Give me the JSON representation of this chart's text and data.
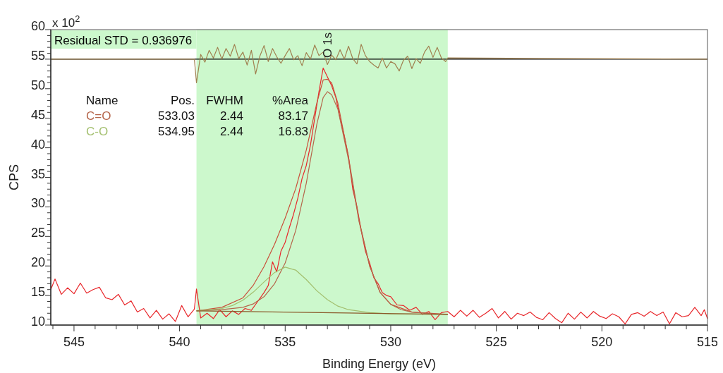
{
  "chart_data": {
    "type": "line",
    "xlabel": "Binding Energy (eV)",
    "ylabel": "CPS",
    "xlim": [
      546.1,
      515
    ],
    "ylim": [
      10,
      60
    ],
    "xticks": [
      {
        "value": 546,
        "label": null
      },
      545,
      {
        "value": 544,
        "label": null
      },
      {
        "value": 543,
        "label": null
      },
      {
        "value": 542,
        "label": null
      },
      {
        "value": 541,
        "label": null
      },
      540,
      {
        "value": 539,
        "label": null
      },
      {
        "value": 538,
        "label": null
      },
      {
        "value": 537,
        "label": null
      },
      {
        "value": 536,
        "label": null
      },
      535,
      {
        "value": 534,
        "label": null
      },
      {
        "value": 533,
        "label": null
      },
      {
        "value": 532,
        "label": null
      },
      {
        "value": 531,
        "label": null
      },
      530,
      {
        "value": 529,
        "label": null
      },
      {
        "value": 528,
        "label": null
      },
      {
        "value": 527,
        "label": null
      },
      {
        "value": 526,
        "label": null
      },
      525,
      {
        "value": 524,
        "label": null
      },
      {
        "value": 523,
        "label": null
      },
      {
        "value": 522,
        "label": null
      },
      {
        "value": 521,
        "label": null
      },
      520,
      {
        "value": 519,
        "label": null
      },
      {
        "value": 518,
        "label": null
      },
      {
        "value": 517,
        "label": null
      },
      {
        "value": 516,
        "label": null
      },
      515
    ],
    "yticks": [
      10,
      {
        "value": 11,
        "label": null
      },
      {
        "value": 12,
        "label": null
      },
      {
        "value": 13,
        "label": null
      },
      {
        "value": 14,
        "label": null
      },
      15,
      {
        "value": 16,
        "label": null
      },
      {
        "value": 17,
        "label": null
      },
      {
        "value": 18,
        "label": null
      },
      {
        "value": 19,
        "label": null
      },
      20,
      {
        "value": 21,
        "label": null
      },
      {
        "value": 22,
        "label": null
      },
      {
        "value": 23,
        "label": null
      },
      {
        "value": 24,
        "label": null
      },
      25,
      {
        "value": 26,
        "label": null
      },
      {
        "value": 27,
        "label": null
      },
      {
        "value": 28,
        "label": null
      },
      {
        "value": 29,
        "label": null
      },
      30,
      {
        "value": 31,
        "label": null
      },
      {
        "value": 32,
        "label": null
      },
      {
        "value": 33,
        "label": null
      },
      {
        "value": 34,
        "label": null
      },
      35,
      {
        "value": 36,
        "label": null
      },
      {
        "value": 37,
        "label": null
      },
      {
        "value": 38,
        "label": null
      },
      {
        "value": 39,
        "label": null
      },
      40,
      {
        "value": 41,
        "label": null
      },
      {
        "value": 42,
        "label": null
      },
      {
        "value": 43,
        "label": null
      },
      {
        "value": 44,
        "label": null
      },
      45,
      {
        "value": 46,
        "label": null
      },
      {
        "value": 47,
        "label": null
      },
      {
        "value": 48,
        "label": null
      },
      {
        "value": 49,
        "label": null
      },
      50,
      {
        "value": 51,
        "label": null
      },
      {
        "value": 52,
        "label": null
      },
      {
        "value": 53,
        "label": null
      },
      {
        "value": 54,
        "label": null
      },
      55,
      {
        "value": 56,
        "label": null
      },
      {
        "value": 57,
        "label": null
      },
      {
        "value": 58,
        "label": null
      },
      {
        "value": 59,
        "label": null
      },
      60
    ],
    "grid": false,
    "marker": "none",
    "line_style": "solid",
    "bands": [
      {
        "axis": "x",
        "from": 539.2,
        "to": 527.3,
        "color": "#ccf8cc"
      }
    ],
    "ref_lines": [
      {
        "axis": "y",
        "value": 55,
        "color": "#000000"
      }
    ],
    "annotations": [
      "x 10$^{2}$",
      "Residual STD = 0.936976",
      {
        "text": "O 1s",
        "x": 533,
        "y": 55
      },
      "Name",
      "Pos.",
      "FWHM",
      "%Area",
      "533.03",
      "2.44",
      "83.17",
      "534.95",
      "2.44",
      "16.83"
    ],
    "series": [
      {
        "color": "#e8262a",
        "x": [
          546.1,
          545.9,
          545.6,
          545.3,
          545.0,
          544.7,
          544.4,
          544.1,
          543.8,
          543.5,
          543.2,
          542.9,
          542.6,
          542.3,
          542.0,
          541.7,
          541.4,
          541.1,
          540.8,
          540.5,
          540.2,
          539.9,
          539.6,
          539.3,
          539.2,
          539.0,
          538.7,
          538.4,
          538.1,
          537.8,
          537.5,
          537.2,
          536.9,
          536.6,
          536.3,
          536.0,
          535.8,
          535.6,
          535.4,
          535.2,
          535.0,
          534.8,
          534.6,
          534.4,
          534.2,
          534.0,
          533.8,
          533.6,
          533.4,
          533.2,
          533.0,
          532.8,
          532.6,
          532.4,
          532.2,
          532.0,
          531.8,
          531.6,
          531.4,
          531.2,
          531.0,
          530.8,
          530.6,
          530.4,
          530.2,
          530.0,
          529.7,
          529.4,
          529.1,
          528.8,
          528.5,
          528.2,
          527.9,
          527.6,
          527.3,
          527.0,
          526.7,
          526.4,
          526.1,
          525.8,
          525.5,
          525.2,
          524.9,
          524.6,
          524.3,
          524.0,
          523.7,
          523.4,
          523.1,
          522.8,
          522.5,
          522.2,
          521.9,
          521.6,
          521.3,
          521.0,
          520.7,
          520.4,
          520.1,
          519.8,
          519.5,
          519.2,
          518.9,
          518.6,
          518.3,
          518.0,
          517.7,
          517.4,
          517.1,
          516.8,
          516.5,
          516.2,
          515.9,
          515.6,
          515.3,
          515.15,
          515.0
        ],
        "values": [
          16.0,
          17.8,
          15.2,
          16.3,
          15.3,
          17.1,
          15.4,
          16.0,
          16.4,
          14.6,
          14.3,
          15.2,
          13.4,
          14.1,
          12.2,
          12.8,
          11.2,
          12.5,
          11.0,
          11.9,
          10.6,
          13.3,
          11.4,
          12.7,
          16.1,
          11.2,
          12.0,
          11.1,
          12.6,
          11.4,
          12.4,
          11.8,
          12.8,
          12.5,
          14.0,
          15.5,
          16.7,
          20.7,
          19.0,
          22.5,
          24.0,
          26.5,
          28.8,
          31.5,
          34.8,
          37.0,
          40.5,
          45.0,
          49.5,
          53.5,
          52.0,
          50.5,
          48.5,
          45.0,
          42.0,
          38.5,
          33.0,
          30.0,
          26.0,
          22.5,
          20.5,
          18.0,
          17.0,
          15.5,
          15.0,
          14.8,
          13.4,
          13.3,
          12.5,
          13.0,
          11.8,
          12.3,
          10.9,
          12.1,
          12.3,
          11.4,
          12.5,
          11.5,
          12.5,
          11.3,
          12.0,
          12.8,
          11.2,
          12.3,
          11.0,
          12.0,
          11.6,
          12.2,
          11.3,
          10.9,
          12.1,
          11.1,
          10.4,
          12.0,
          11.0,
          12.2,
          11.2,
          12.3,
          11.5,
          11.1,
          11.9,
          11.4,
          10.2,
          11.8,
          12.1,
          11.5,
          12.3,
          11.6,
          12.2,
          10.2,
          12.1,
          11.4,
          11.6,
          13.0,
          11.6,
          12.6,
          11.1
        ]
      },
      {
        "color": "#c9503a",
        "x": [
          539.2,
          538,
          537,
          536.5,
          536,
          535.5,
          535,
          534.5,
          534,
          533.5,
          533.2,
          533,
          532.8,
          532.5,
          532,
          531.5,
          531,
          530.5,
          530,
          529,
          527.3
        ],
        "values": [
          12.4,
          13.0,
          14.6,
          16.8,
          19.9,
          23.7,
          28.1,
          33.1,
          39.6,
          47.6,
          51.5,
          51.6,
          51.0,
          47.5,
          38.4,
          27.7,
          20.0,
          15.5,
          13.5,
          12.2,
          11.8
        ]
      },
      {
        "name": "C=O",
        "color": "#b5654a",
        "x": [
          539.2,
          538,
          537,
          536.5,
          536,
          535.5,
          535,
          534.5,
          534,
          533.5,
          533.2,
          533,
          532.8,
          532.5,
          532,
          531.5,
          531,
          530.5,
          530,
          529.5,
          529,
          528,
          527.3
        ],
        "values": [
          12.4,
          12.6,
          13.0,
          13.6,
          14.8,
          17.0,
          20.5,
          26.0,
          34.0,
          44.0,
          48.5,
          49.5,
          49.0,
          46.5,
          38.0,
          27.5,
          20.0,
          15.5,
          13.5,
          12.6,
          12.2,
          11.9,
          11.8
        ]
      },
      {
        "name": "C-O",
        "color": "#a3bf6e",
        "x": [
          539.2,
          538,
          537.5,
          537,
          536.5,
          536,
          535.5,
          535,
          534.5,
          534,
          533.5,
          533,
          532.5,
          532,
          531,
          530,
          527.3
        ],
        "values": [
          12.4,
          12.8,
          13.3,
          14.2,
          15.6,
          17.3,
          18.9,
          19.8,
          19.3,
          17.7,
          15.8,
          14.3,
          13.2,
          12.6,
          12.1,
          11.9,
          11.8
        ]
      },
      {
        "color": "#8b5a2b",
        "x": [
          539.2,
          527.3
        ],
        "values": [
          12.4,
          11.8
        ]
      },
      {
        "color": "#a08050",
        "x": [
          546.1,
          539.3,
          539.2,
          539.0,
          538.8,
          538.6,
          538.4,
          538.2,
          538.0,
          537.8,
          537.6,
          537.4,
          537.2,
          537.0,
          536.8,
          536.6,
          536.4,
          536.2,
          536.0,
          535.8,
          535.6,
          535.4,
          535.2,
          535.0,
          534.8,
          534.6,
          534.4,
          534.2,
          534.0,
          533.8,
          533.6,
          533.4,
          533.2,
          533.0,
          532.8,
          532.6,
          532.4,
          532.2,
          532.0,
          531.8,
          531.6,
          531.4,
          531.2,
          531.0,
          530.8,
          530.6,
          530.4,
          530.2,
          530.0,
          529.8,
          529.6,
          529.4,
          529.2,
          529.0,
          528.8,
          528.6,
          528.4,
          528.2,
          528.0,
          527.8,
          527.6,
          527.4,
          527.3,
          515
        ],
        "values": [
          55,
          55,
          51,
          55.8,
          54.5,
          56.5,
          55.2,
          57,
          55,
          56.8,
          55.5,
          57.5,
          55.1,
          56.2,
          54,
          56.5,
          52.5,
          55.5,
          57.3,
          54.6,
          56.8,
          55.4,
          54.3,
          55.6,
          56.8,
          54.9,
          55.6,
          53.9,
          56.1,
          55.0,
          57.4,
          55.6,
          56.2,
          54.1,
          55.7,
          54.9,
          56.6,
          55.0,
          57.2,
          55.1,
          54.2,
          57.5,
          55.6,
          54.6,
          54.0,
          53.5,
          55.2,
          53.5,
          54.6,
          54.2,
          53.0,
          54.8,
          55.5,
          53.4,
          55.1,
          54.3,
          56.2,
          57.2,
          55.3,
          57.0,
          55.2,
          54.6,
          55.2,
          55
        ]
      }
    ]
  }
}
